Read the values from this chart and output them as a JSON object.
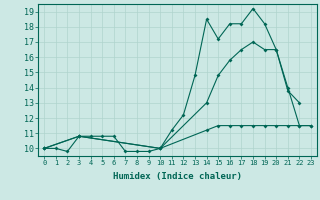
{
  "xlabel": "Humidex (Indice chaleur)",
  "ylabel": "",
  "xlim": [
    -0.5,
    23.5
  ],
  "ylim": [
    9.5,
    19.5
  ],
  "yticks": [
    10,
    11,
    12,
    13,
    14,
    15,
    16,
    17,
    18,
    19
  ],
  "xticks": [
    0,
    1,
    2,
    3,
    4,
    5,
    6,
    7,
    8,
    9,
    10,
    11,
    12,
    13,
    14,
    15,
    16,
    17,
    18,
    19,
    20,
    21,
    22,
    23
  ],
  "bg_color": "#cce8e4",
  "grid_color": "#b0d4ce",
  "line_color": "#006655",
  "line1_x": [
    0,
    1,
    2,
    3,
    4,
    5,
    6,
    7,
    8,
    9,
    10,
    11,
    12,
    13,
    14,
    15,
    16,
    17,
    18,
    19,
    20,
    21,
    22
  ],
  "line1_y": [
    10.0,
    10.0,
    9.8,
    10.8,
    10.8,
    10.8,
    10.8,
    9.8,
    9.8,
    9.8,
    10.0,
    11.2,
    12.2,
    14.8,
    18.5,
    17.2,
    18.2,
    18.2,
    19.2,
    18.2,
    16.5,
    13.8,
    13.0
  ],
  "line2_x": [
    0,
    3,
    10,
    14,
    15,
    16,
    17,
    18,
    19,
    20,
    21,
    22,
    23
  ],
  "line2_y": [
    10.0,
    10.8,
    10.0,
    11.2,
    11.5,
    11.5,
    11.5,
    11.5,
    11.5,
    11.5,
    11.5,
    11.5,
    11.5
  ],
  "line3_x": [
    0,
    3,
    10,
    14,
    15,
    16,
    17,
    18,
    19,
    20,
    21,
    22,
    23
  ],
  "line3_y": [
    10.0,
    10.8,
    10.0,
    13.0,
    14.8,
    15.8,
    16.5,
    17.0,
    16.5,
    16.5,
    14.0,
    11.5,
    11.5
  ]
}
